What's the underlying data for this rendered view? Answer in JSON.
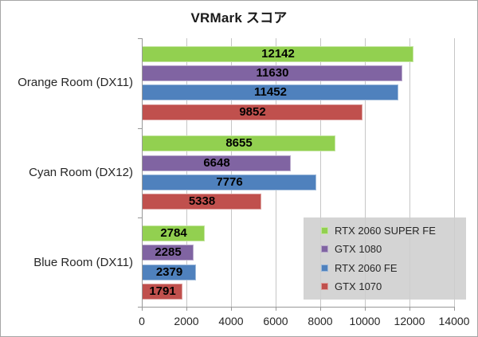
{
  "chart_data": {
    "type": "bar",
    "orientation": "horizontal",
    "title": "VRMark スコア",
    "categories": [
      "Orange Room (DX11)",
      "Cyan Room (DX12)",
      "Blue Room (DX11)"
    ],
    "series": [
      {
        "name": "RTX 2060 SUPER FE",
        "color": "#92D050",
        "values": [
          12142,
          8655,
          2784
        ]
      },
      {
        "name": "GTX 1080",
        "color": "#8064A2",
        "values": [
          11630,
          6648,
          2285
        ]
      },
      {
        "name": "RTX 2060 FE",
        "color": "#4F81BD",
        "values": [
          11452,
          7776,
          2379
        ]
      },
      {
        "name": "GTX 1070",
        "color": "#C0504D",
        "values": [
          9852,
          5338,
          1791
        ]
      }
    ],
    "x_axis": {
      "min": 0,
      "max": 14000,
      "step": 2000,
      "tick_labels": [
        "0",
        "2000",
        "4000",
        "6000",
        "8000",
        "10000",
        "12000",
        "14000"
      ]
    },
    "value_labels_shown": true,
    "grid": true,
    "legend_position": "inside-bottom-right",
    "colors": {
      "gridline": "#C6C6C6",
      "axis": "#989898",
      "chart_border": "#A6A6A6",
      "legend_background": "#CECECE",
      "text": "#262626"
    }
  }
}
